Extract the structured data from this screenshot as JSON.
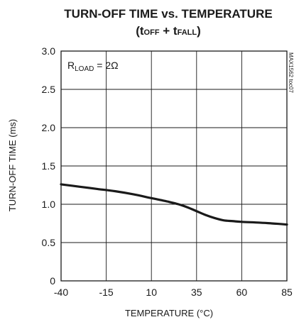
{
  "chart_data": {
    "type": "line",
    "title": "TURN-OFF TIME vs. TEMPERATURE",
    "subtitle_main": "(t",
    "subtitle_sub1": "OFF",
    "subtitle_plus": " + t",
    "subtitle_sub2": "FALL",
    "subtitle_close": ")",
    "xlabel": "TEMPERATURE (°C)",
    "ylabel": "TURN-OFF TIME (ms)",
    "xlim": [
      -40,
      85
    ],
    "ylim": [
      0,
      3.0
    ],
    "x_ticks": [
      -40,
      -15,
      10,
      35,
      60,
      85
    ],
    "y_ticks": [
      0,
      0.5,
      1.0,
      1.5,
      2.0,
      2.5,
      3.0
    ],
    "x_tick_labels": [
      "-40",
      "-15",
      "10",
      "35",
      "60",
      "85"
    ],
    "y_tick_labels": [
      "0",
      "0.5",
      "1.0",
      "1.5",
      "2.0",
      "2.5",
      "3.0"
    ],
    "grid": true,
    "annotation": {
      "prefix": "R",
      "sub": "LOAD",
      "suffix": " = 2Ω"
    },
    "figure_code": "MAX1562 toc07",
    "series": [
      {
        "x": [
          -40,
          -30,
          -20,
          -10,
          0,
          10,
          20,
          25,
          30,
          35,
          40,
          45,
          50,
          55,
          60,
          70,
          80,
          85
        ],
        "values": [
          1.26,
          1.23,
          1.2,
          1.17,
          1.13,
          1.08,
          1.03,
          1.0,
          0.96,
          0.91,
          0.86,
          0.82,
          0.79,
          0.78,
          0.77,
          0.76,
          0.745,
          0.735
        ]
      }
    ],
    "colors": {
      "line": "#1a1a1a",
      "grid": "#1a1a1a"
    }
  }
}
